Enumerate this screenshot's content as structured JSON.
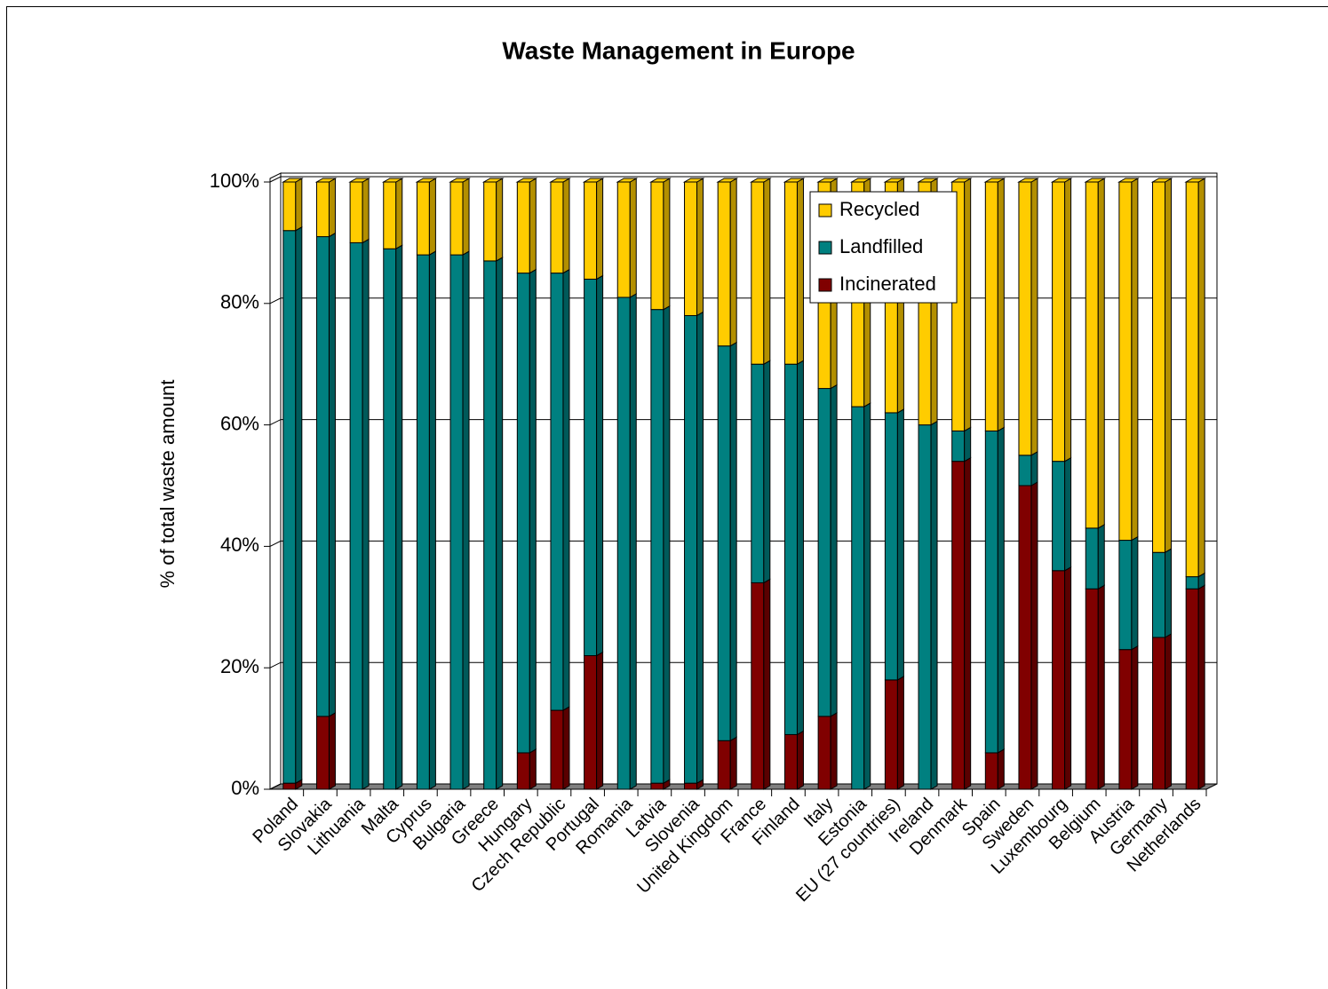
{
  "chart_data": {
    "type": "stacked_bar_3d",
    "title": "Waste Management in Europe",
    "y_label": "% of total waste amount",
    "categories": [
      "Poland",
      "Slovakia",
      "Lithuania",
      "Malta",
      "Cyprus",
      "Bulgaria",
      "Greece",
      "Hungary",
      "Czech Republic",
      "Portugal",
      "Romania",
      "Latvia",
      "Slovenia",
      "United Kingdom",
      "France",
      "Finland",
      "Italy",
      "Estonia",
      "EU (27 countries)",
      "Ireland",
      "Denmark",
      "Spain",
      "Sweden",
      "Luxembourg",
      "Belgium",
      "Austria",
      "Germany",
      "Netherlands"
    ],
    "series": [
      {
        "name": "Incinerated",
        "color": "#800000",
        "values": [
          1,
          12,
          0,
          0,
          0,
          0,
          0,
          6,
          13,
          22,
          0,
          1,
          1,
          8,
          34,
          9,
          12,
          0,
          18,
          0,
          54,
          6,
          50,
          36,
          33,
          23,
          25,
          33
        ]
      },
      {
        "name": "Landfilled",
        "color": "#008080",
        "values": [
          91,
          79,
          90,
          89,
          88,
          88,
          87,
          79,
          72,
          62,
          81,
          78,
          77,
          65,
          36,
          61,
          54,
          63,
          44,
          60,
          5,
          53,
          5,
          18,
          10,
          18,
          14,
          2
        ]
      },
      {
        "name": "Recycled",
        "color": "#ffcc00",
        "values": [
          8,
          9,
          10,
          11,
          12,
          12,
          13,
          15,
          15,
          16,
          19,
          21,
          22,
          27,
          30,
          30,
          34,
          37,
          38,
          40,
          41,
          41,
          45,
          46,
          57,
          59,
          61,
          65
        ]
      }
    ],
    "ylim": [
      0,
      100
    ],
    "yticks": [
      {
        "value": 0,
        "label": "0%"
      },
      {
        "value": 20,
        "label": "20%"
      },
      {
        "value": 40,
        "label": "40%"
      },
      {
        "value": 60,
        "label": "60%"
      },
      {
        "value": 80,
        "label": "80%"
      },
      {
        "value": 100,
        "label": "100%"
      }
    ],
    "grid": true
  }
}
